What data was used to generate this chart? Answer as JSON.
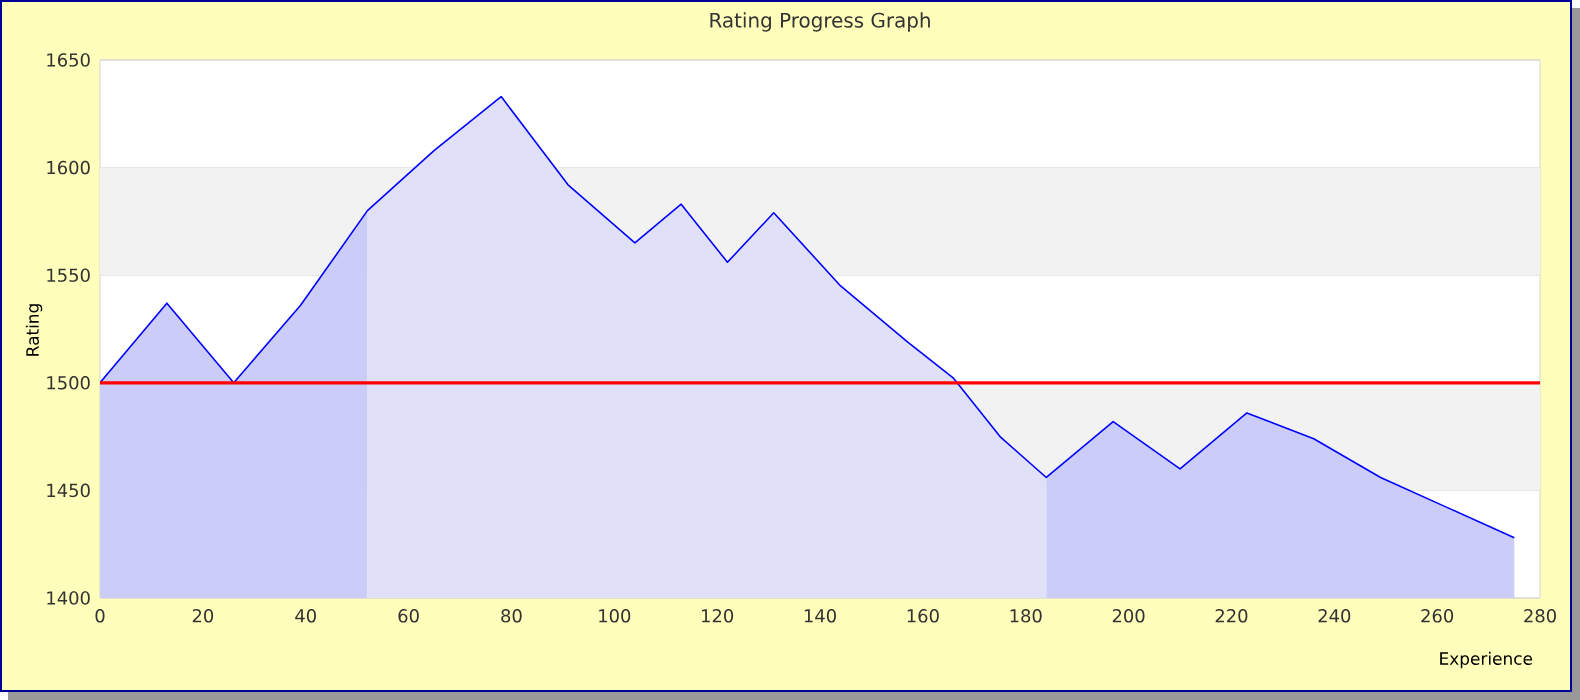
{
  "chart_data": {
    "type": "area",
    "title": "Rating Progress Graph",
    "xlabel": "Experience",
    "ylabel": "Rating",
    "xlim": [
      0,
      280
    ],
    "xticks": [
      0,
      20,
      40,
      60,
      80,
      100,
      120,
      140,
      160,
      180,
      200,
      220,
      240,
      260,
      280
    ],
    "ylim": [
      1400,
      1650
    ],
    "yticks": [
      1400,
      1450,
      1500,
      1550,
      1600,
      1650
    ],
    "grid": "y",
    "bands": [
      {
        "axis": "y",
        "from": 1450,
        "to": 1500,
        "color": "#f2f2f2"
      },
      {
        "axis": "y",
        "from": 1550,
        "to": 1600,
        "color": "#f2f2f2"
      }
    ],
    "ref_lines": [
      {
        "axis": "y",
        "value": 1500,
        "color": "#ff0000"
      }
    ],
    "series": [
      {
        "color": "#ccccf8",
        "x": [
          0,
          13,
          26,
          39,
          52
        ],
        "values": [
          1500,
          1537,
          1500,
          1536,
          1580
        ]
      },
      {
        "color": "#e0e0f8",
        "x": [
          52,
          65,
          78,
          91,
          104,
          113,
          122,
          131,
          144,
          157,
          166,
          175,
          184
        ],
        "values": [
          1580,
          1608,
          1633,
          1592,
          1565,
          1583,
          1556,
          1579,
          1545,
          1519,
          1502,
          1475,
          1456
        ]
      },
      {
        "color": "#ccccf8",
        "x": [
          184,
          197,
          210,
          223,
          236,
          249,
          262,
          275
        ],
        "values": [
          1456,
          1482,
          1460,
          1486,
          1474,
          1456,
          1442,
          1428
        ]
      },
      {
        "type": "line",
        "color": "#0000ff",
        "x": [
          0,
          13,
          26,
          39,
          52,
          65,
          78,
          91,
          104,
          113,
          122,
          131,
          144,
          157,
          166,
          175,
          184,
          197,
          210,
          223,
          236,
          249,
          262,
          275
        ],
        "values": [
          1500,
          1537,
          1500,
          1536,
          1580,
          1608,
          1633,
          1592,
          1565,
          1583,
          1556,
          1579,
          1545,
          1519,
          1502,
          1475,
          1456,
          1482,
          1460,
          1486,
          1474,
          1456,
          1442,
          1428
        ]
      }
    ]
  }
}
